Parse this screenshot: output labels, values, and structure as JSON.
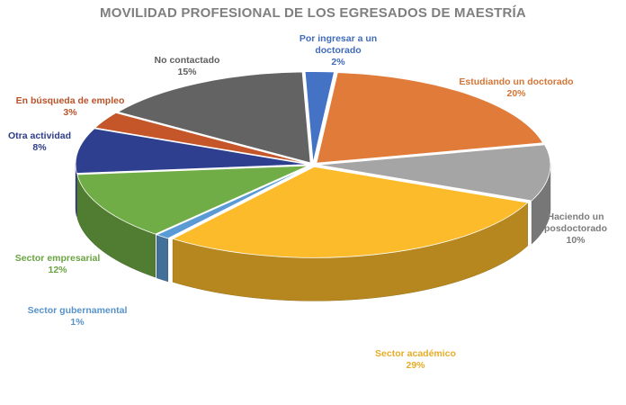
{
  "chart_data": {
    "type": "pie",
    "title": "MOVILIDAD PROFESIONAL DE LOS EGRESADOS DE MAESTRÍA",
    "slices": [
      {
        "label": "Por ingresar a un doctorado",
        "lines": [
          "Por ingresar a un",
          "doctorado"
        ],
        "value": 2,
        "value_label": "2%",
        "color": "#4472c4"
      },
      {
        "label": "Estudiando un doctorado",
        "lines": [
          "Estudiando un doctorado"
        ],
        "value": 20,
        "value_label": "20%",
        "color": "#e07b39"
      },
      {
        "label": "Haciendo un posdoctorado",
        "lines": [
          "Haciendo un",
          "posdoctorado"
        ],
        "value": 10,
        "value_label": "10%",
        "color": "#a5a5a5"
      },
      {
        "label": "Sector académico",
        "lines": [
          "Sector académico"
        ],
        "value": 29,
        "value_label": "29%",
        "color": "#fbbb2a"
      },
      {
        "label": "Sector gubernamental",
        "lines": [
          "Sector gubernamental"
        ],
        "value": 1,
        "value_label": "1%",
        "color": "#5b9bd5"
      },
      {
        "label": "Sector empresarial",
        "lines": [
          "Sector empresarial"
        ],
        "value": 12,
        "value_label": "12%",
        "color": "#70ad47"
      },
      {
        "label": "Otra actividad",
        "lines": [
          "Otra actividad"
        ],
        "value": 8,
        "value_label": "8%",
        "color": "#2f3f8f"
      },
      {
        "label": "En búsqueda de empleo",
        "lines": [
          "En búsqueda de empleo"
        ],
        "value": 3,
        "value_label": "3%",
        "color": "#c4562a"
      },
      {
        "label": "No contactado",
        "lines": [
          "No contactado"
        ],
        "value": 15,
        "value_label": "15%",
        "color": "#636363"
      }
    ]
  }
}
